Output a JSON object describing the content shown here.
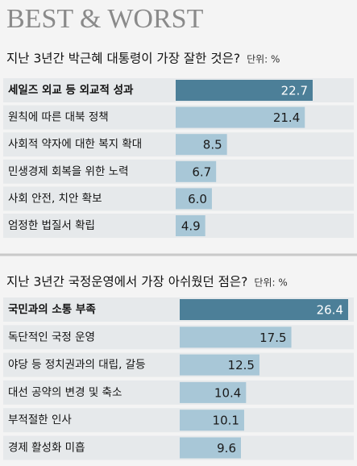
{
  "title": "BEST & WORST",
  "chart_data": [
    {
      "type": "bar",
      "title": "지난 3년간 박근혜 대통령이 가장 잘한 것은?",
      "unit": "단위: %",
      "categories": [
        "세일즈 외교 등 외교적 성과",
        "원칙에 따른 대북 정책",
        "사회적 약자에 대한 복지 확대",
        "민생경제 회복을 위한 노력",
        "사회 안전, 치안 확보",
        "엄정한 법질서 확립"
      ],
      "values": [
        22.7,
        21.4,
        8.5,
        6.7,
        6.0,
        4.9
      ],
      "value_labels": [
        "22.7",
        "21.4",
        "8.5",
        "6.7",
        "6.0",
        "4.9"
      ],
      "colors": [
        "#4c7f98",
        "#a8c7d7",
        "#a8c7d7",
        "#a8c7d7",
        "#a8c7d7",
        "#a8c7d7"
      ]
    },
    {
      "type": "bar",
      "title": "지난 3년간 국정운영에서 가장 아쉬웠던 점은?",
      "unit": "단위: %",
      "categories": [
        "국민과의 소통 부족",
        "독단적인 국정 운영",
        "야당 등 정치권과의 대립, 갈등",
        "대선 공약의 변경 및 축소",
        "부적절한 인사",
        "경제 활성화 미흡"
      ],
      "values": [
        26.4,
        17.5,
        12.5,
        10.4,
        10.1,
        9.6
      ],
      "value_labels": [
        "26.4",
        "17.5",
        "12.5",
        "10.4",
        "10.1",
        "9.6"
      ],
      "colors": [
        "#4c7f98",
        "#a8c7d7",
        "#a8c7d7",
        "#a8c7d7",
        "#a8c7d7",
        "#a8c7d7"
      ]
    }
  ]
}
